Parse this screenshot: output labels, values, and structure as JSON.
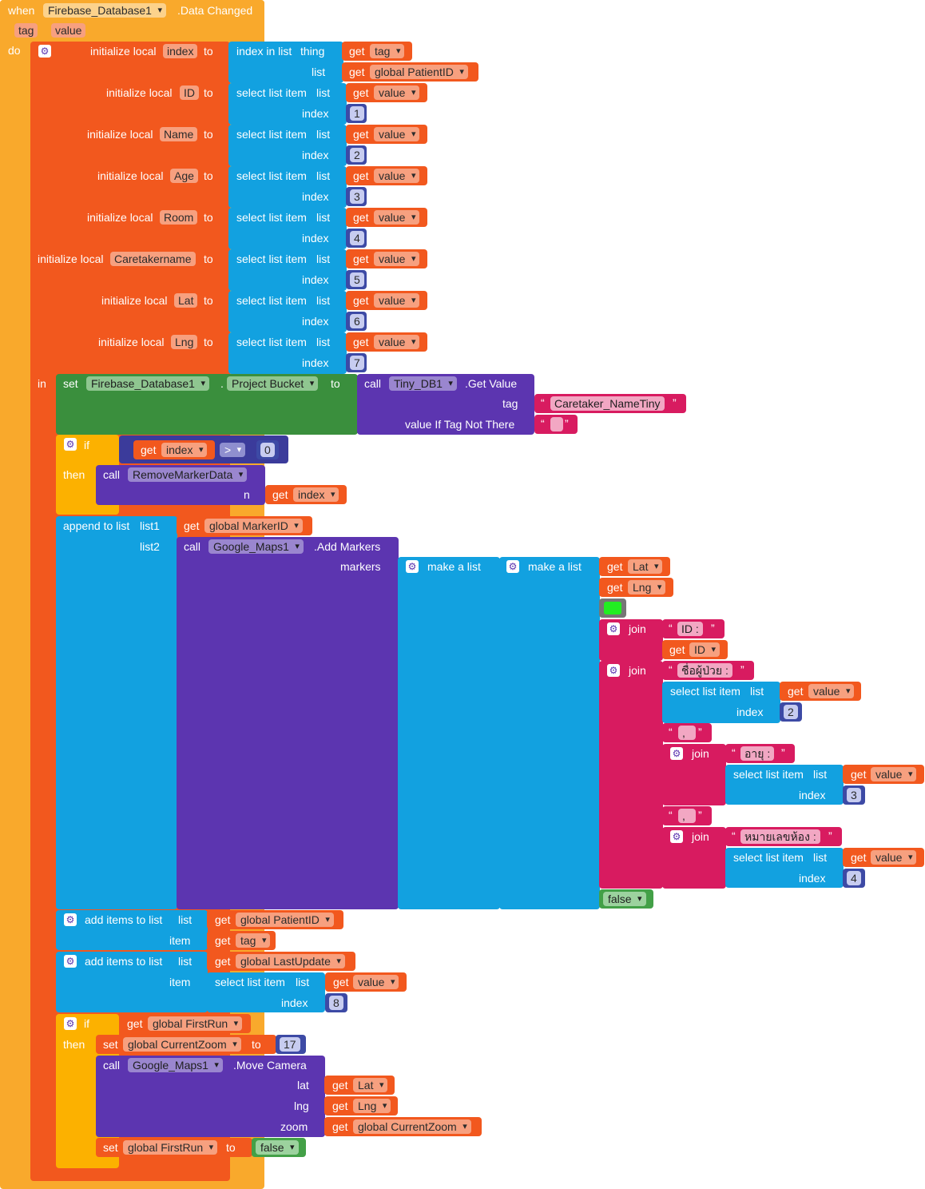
{
  "event": {
    "when_label": "when",
    "component": "Firebase_Database1",
    "event_name": ".Data Changed",
    "param_tag": "tag",
    "param_value": "value",
    "do_label": "do"
  },
  "common": {
    "initialize_local": "initialize local",
    "to": "to",
    "get": "get",
    "set": "set",
    "call": "call",
    "index_label": "index",
    "list_label": "list",
    "item_label": "item",
    "select_list_item": "select list item",
    "index_in_list": "index in list",
    "thing_label": "thing",
    "in_label": "in",
    "if_label": "if",
    "then_label": "then",
    "join_label": "join",
    "make_a_list": "make a list",
    "add_items_to_list": "add items to list",
    "append_to_list": "append to list",
    "list1": "list1",
    "list2": "list2",
    "quote_open": "“",
    "quote_close": "”",
    "gear_icon": "gear-icon"
  },
  "locals": {
    "index": "index",
    "id": "ID",
    "name": "Name",
    "age": "Age",
    "room": "Room",
    "caretakername": "Caretakername",
    "lat": "Lat",
    "lng": "Lng"
  },
  "vars": {
    "tag": "tag",
    "value": "value",
    "patient_id": "global PatientID",
    "marker_id": "global MarkerID",
    "last_update": "global LastUpdate",
    "first_run": "global FirstRun",
    "current_zoom": "global CurrentZoom"
  },
  "numbers": {
    "n1": "1",
    "n2": "2",
    "n3": "3",
    "n4": "4",
    "n5": "5",
    "n6": "6",
    "n7": "7",
    "n8": "8",
    "n0": "0",
    "n17": "17"
  },
  "set_firebase": {
    "component": "Firebase_Database1",
    "dot": ".",
    "property": "Project Bucket",
    "tinydb": "Tiny_DB1",
    "method": ".Get Value",
    "tag_label": "tag",
    "tag_text": "Caretaker_NameTiny",
    "value_if_label": "value If Tag Not There",
    "empty_text": ""
  },
  "if1": {
    "operator": ">",
    "procedure": "RemoveMarkerData",
    "n_label": "n"
  },
  "maps": {
    "component": "Google_Maps1",
    "add_markers": ".Add Markers",
    "markers_label": "markers",
    "move_camera": ".Move Camera",
    "lat_label": "lat",
    "lng_label": "lng",
    "zoom_label": "zoom",
    "marker_color": "#22ee22"
  },
  "texts": {
    "id_prefix": "ID :",
    "patient_name": "ชื่อผู้ป่วย :",
    "comma1": ",",
    "age": "อายุ :",
    "comma2": ",",
    "room_no": "หมายเลขห้อง :"
  },
  "logic": {
    "false1": "false",
    "false2": "false"
  },
  "colors": {
    "event": "#f9a92c",
    "variables": "#f2581e",
    "lists": "#12a1e0",
    "control": "#fcb100",
    "math": "#3d4aa5",
    "text": "#d81b60",
    "component": "#5c35b0",
    "logic": "#43a047"
  }
}
